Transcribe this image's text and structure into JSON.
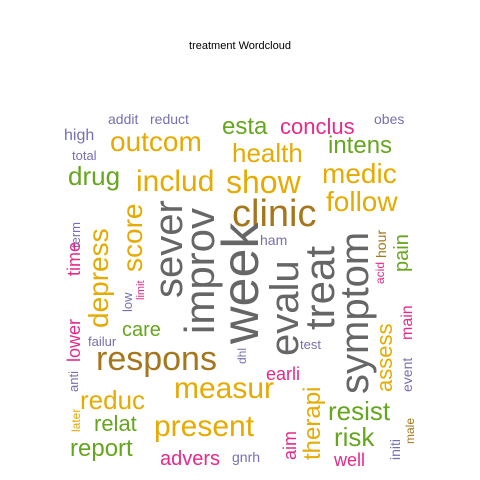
{
  "chart_data": {
    "type": "wordcloud",
    "title": "treatment  Wordcloud",
    "words": [
      {
        "text": "addit",
        "color": "#7570b3"
      },
      {
        "text": "reduct",
        "color": "#7570b3"
      },
      {
        "text": "obes",
        "color": "#7570b3"
      },
      {
        "text": "high",
        "color": "#7570b3"
      },
      {
        "text": "outcom",
        "color": "#e6ab02"
      },
      {
        "text": "esta",
        "color": "#66a61e"
      },
      {
        "text": "conclus",
        "color": "#e7298a"
      },
      {
        "text": "intens",
        "color": "#66a61e"
      },
      {
        "text": "total",
        "color": "#7570b3"
      },
      {
        "text": "health",
        "color": "#e6ab02"
      },
      {
        "text": "drug",
        "color": "#66a61e"
      },
      {
        "text": "includ",
        "color": "#e6ab02"
      },
      {
        "text": "show",
        "color": "#e6ab02"
      },
      {
        "text": "medic",
        "color": "#e6ab02"
      },
      {
        "text": "follow",
        "color": "#e6ab02"
      },
      {
        "text": "clinic",
        "color": "#a6761d"
      },
      {
        "text": "term",
        "color": "#7570b3"
      },
      {
        "text": "score",
        "color": "#e6ab02"
      },
      {
        "text": "depress",
        "color": "#e6ab02"
      },
      {
        "text": "time",
        "color": "#e7298a"
      },
      {
        "text": "sever",
        "color": "#666666"
      },
      {
        "text": "improv",
        "color": "#666666"
      },
      {
        "text": "week",
        "color": "#666666"
      },
      {
        "text": "ham",
        "color": "#7570b3"
      },
      {
        "text": "evalu",
        "color": "#666666"
      },
      {
        "text": "treat",
        "color": "#666666"
      },
      {
        "text": "symptom",
        "color": "#666666"
      },
      {
        "text": "hour",
        "color": "#a6761d"
      },
      {
        "text": "acid",
        "color": "#e7298a"
      },
      {
        "text": "pain",
        "color": "#66a61e"
      },
      {
        "text": "limit",
        "color": "#e7298a"
      },
      {
        "text": "low",
        "color": "#7570b3"
      },
      {
        "text": "care",
        "color": "#66a61e"
      },
      {
        "text": "lower",
        "color": "#e7298a"
      },
      {
        "text": "failur",
        "color": "#7570b3"
      },
      {
        "text": "dhl",
        "color": "#7570b3"
      },
      {
        "text": "test",
        "color": "#7570b3"
      },
      {
        "text": "main",
        "color": "#e7298a"
      },
      {
        "text": "event",
        "color": "#7570b3"
      },
      {
        "text": "assess",
        "color": "#e6ab02"
      },
      {
        "text": "respons",
        "color": "#a6761d"
      },
      {
        "text": "earli",
        "color": "#e7298a"
      },
      {
        "text": "anti",
        "color": "#7570b3"
      },
      {
        "text": "measur",
        "color": "#e6ab02"
      },
      {
        "text": "reduc",
        "color": "#e6ab02"
      },
      {
        "text": "relat",
        "color": "#66a61e"
      },
      {
        "text": "therapi",
        "color": "#e6ab02"
      },
      {
        "text": "resist",
        "color": "#66a61e"
      },
      {
        "text": "later",
        "color": "#e6ab02"
      },
      {
        "text": "present",
        "color": "#e6ab02"
      },
      {
        "text": "risk",
        "color": "#66a61e"
      },
      {
        "text": "male",
        "color": "#a6761d"
      },
      {
        "text": "initi",
        "color": "#7570b3"
      },
      {
        "text": "report",
        "color": "#66a61e"
      },
      {
        "text": "aim",
        "color": "#e7298a"
      },
      {
        "text": "advers",
        "color": "#e7298a"
      },
      {
        "text": "gnrh",
        "color": "#7570b3"
      },
      {
        "text": "well",
        "color": "#e7298a"
      }
    ]
  }
}
